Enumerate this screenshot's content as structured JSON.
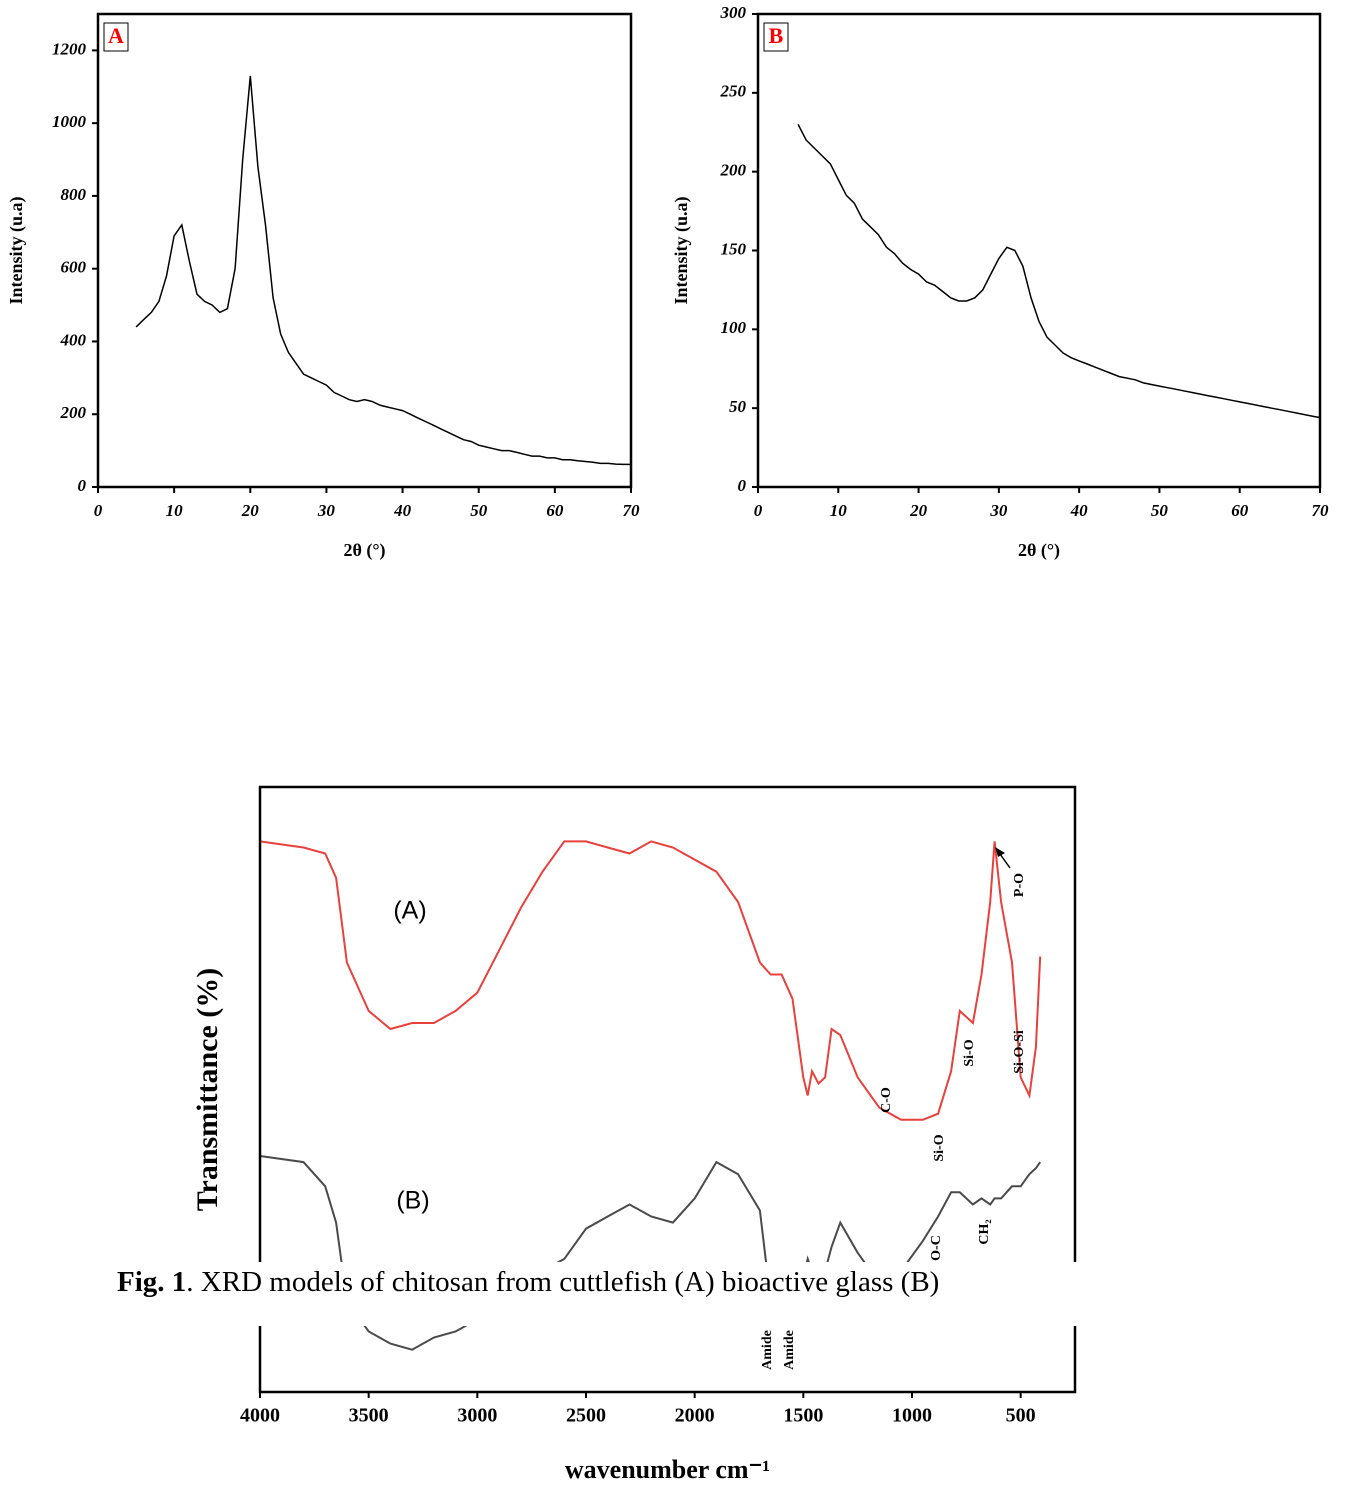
{
  "chart_data": [
    {
      "type": "line",
      "panel_label": "A",
      "ylabel": "Intensity (u.a)",
      "xlabel": "2θ (°)",
      "xlim": [
        0,
        70
      ],
      "ylim": [
        0,
        1300
      ],
      "xticks": [
        0,
        10,
        20,
        30,
        40,
        50,
        60,
        70
      ],
      "yticks": [
        0,
        200,
        400,
        600,
        800,
        1000,
        1200
      ],
      "x": [
        5,
        6,
        7,
        8,
        9,
        10,
        11,
        12,
        13,
        14,
        15,
        16,
        17,
        18,
        19,
        20,
        21,
        22,
        23,
        24,
        25,
        26,
        27,
        28,
        29,
        30,
        31,
        32,
        33,
        34,
        35,
        36,
        37,
        38,
        39,
        40,
        41,
        42,
        43,
        44,
        45,
        46,
        47,
        48,
        49,
        50,
        51,
        52,
        53,
        54,
        55,
        56,
        57,
        58,
        59,
        60,
        61,
        62,
        63,
        64,
        65,
        66,
        67,
        68,
        69,
        70
      ],
      "series": [
        {
          "color": "#000000",
          "values": [
            440,
            460,
            480,
            510,
            580,
            690,
            720,
            620,
            530,
            510,
            500,
            480,
            490,
            600,
            900,
            1130,
            880,
            720,
            520,
            420,
            370,
            340,
            310,
            300,
            290,
            280,
            260,
            250,
            240,
            235,
            240,
            235,
            225,
            220,
            215,
            210,
            200,
            190,
            180,
            170,
            160,
            150,
            140,
            130,
            125,
            115,
            110,
            105,
            100,
            100,
            95,
            90,
            85,
            85,
            80,
            80,
            75,
            75,
            72,
            70,
            68,
            65,
            65,
            63,
            62,
            62
          ]
        }
      ]
    },
    {
      "type": "line",
      "panel_label": "B",
      "ylabel": "Intensity (u.a)",
      "xlabel": "2θ (°)",
      "xlim": [
        0,
        70
      ],
      "ylim": [
        0,
        300
      ],
      "xticks": [
        0,
        10,
        20,
        30,
        40,
        50,
        60,
        70
      ],
      "yticks": [
        0,
        50,
        100,
        150,
        200,
        250,
        300
      ],
      "x": [
        5,
        6,
        7,
        8,
        9,
        10,
        11,
        12,
        13,
        14,
        15,
        16,
        17,
        18,
        19,
        20,
        21,
        22,
        23,
        24,
        25,
        26,
        27,
        28,
        29,
        30,
        31,
        32,
        33,
        34,
        35,
        36,
        37,
        38,
        39,
        40,
        41,
        42,
        43,
        44,
        45,
        46,
        47,
        48,
        49,
        50,
        51,
        52,
        53,
        54,
        55,
        56,
        57,
        58,
        59,
        60,
        61,
        62,
        63,
        64,
        65,
        66,
        67,
        68,
        69,
        70
      ],
      "series": [
        {
          "color": "#000000",
          "values": [
            230,
            220,
            215,
            210,
            205,
            195,
            185,
            180,
            170,
            165,
            160,
            152,
            148,
            142,
            138,
            135,
            130,
            128,
            124,
            120,
            118,
            118,
            120,
            125,
            135,
            145,
            152,
            150,
            140,
            120,
            105,
            95,
            90,
            85,
            82,
            80,
            78,
            76,
            74,
            72,
            70,
            69,
            68,
            66,
            65,
            64,
            63,
            62,
            61,
            60,
            59,
            58,
            57,
            56,
            55,
            54,
            53,
            52,
            51,
            50,
            49,
            48,
            47,
            46,
            45,
            44
          ]
        }
      ]
    },
    {
      "type": "line",
      "ylabel": "Transmittance (%)",
      "xlabel": "wavenumber cm⁻¹",
      "xlim": [
        4000,
        250
      ],
      "ylim": [
        0,
        100
      ],
      "xticks": [
        4000,
        3500,
        3000,
        2500,
        2000,
        1500,
        1000,
        500
      ],
      "x": [
        4000,
        3800,
        3700,
        3650,
        3600,
        3500,
        3400,
        3300,
        3200,
        3100,
        3000,
        2900,
        2800,
        2700,
        2600,
        2500,
        2400,
        2300,
        2200,
        2100,
        2000,
        1900,
        1800,
        1700,
        1650,
        1600,
        1550,
        1500,
        1480,
        1460,
        1430,
        1400,
        1370,
        1330,
        1250,
        1150,
        1050,
        950,
        880,
        820,
        780,
        720,
        680,
        640,
        620,
        590,
        540,
        500,
        460,
        430,
        410
      ],
      "series": [
        {
          "name": "(A)",
          "color": "#e8413c",
          "values": [
            91,
            90,
            89,
            85,
            71,
            63,
            60,
            61,
            61,
            63,
            66,
            73,
            80,
            86,
            91,
            91,
            90,
            89,
            91,
            90,
            88,
            86,
            81,
            71,
            69,
            69,
            65,
            52,
            49,
            53,
            51,
            52,
            60,
            59,
            52,
            47,
            45,
            45,
            46,
            53,
            63,
            61,
            69,
            81,
            91,
            81,
            71,
            52,
            49,
            57,
            72
          ]
        },
        {
          "name": "(B)",
          "color": "#4a4a4a",
          "values": [
            39,
            38,
            34,
            28,
            15,
            10,
            8,
            7,
            9,
            10,
            12,
            14,
            17,
            20,
            22,
            27,
            29,
            31,
            29,
            28,
            32,
            38,
            36,
            30,
            15,
            12,
            14,
            19,
            22,
            20,
            18,
            20,
            24,
            28,
            23,
            18,
            20,
            25,
            29,
            33,
            33,
            31,
            32,
            31,
            32,
            32,
            34,
            34,
            36,
            37,
            38
          ]
        }
      ],
      "annotations": [
        "P-O",
        "Si-O",
        "Si-O-Si",
        "C-O",
        "Si-O",
        "CH₂",
        "O-C",
        "Amide",
        "Amide"
      ]
    }
  ],
  "caption": {
    "label": "Fig. 1",
    "text": ". XRD models of chitosan from cuttlefish (A) bioactive glass (B)"
  }
}
